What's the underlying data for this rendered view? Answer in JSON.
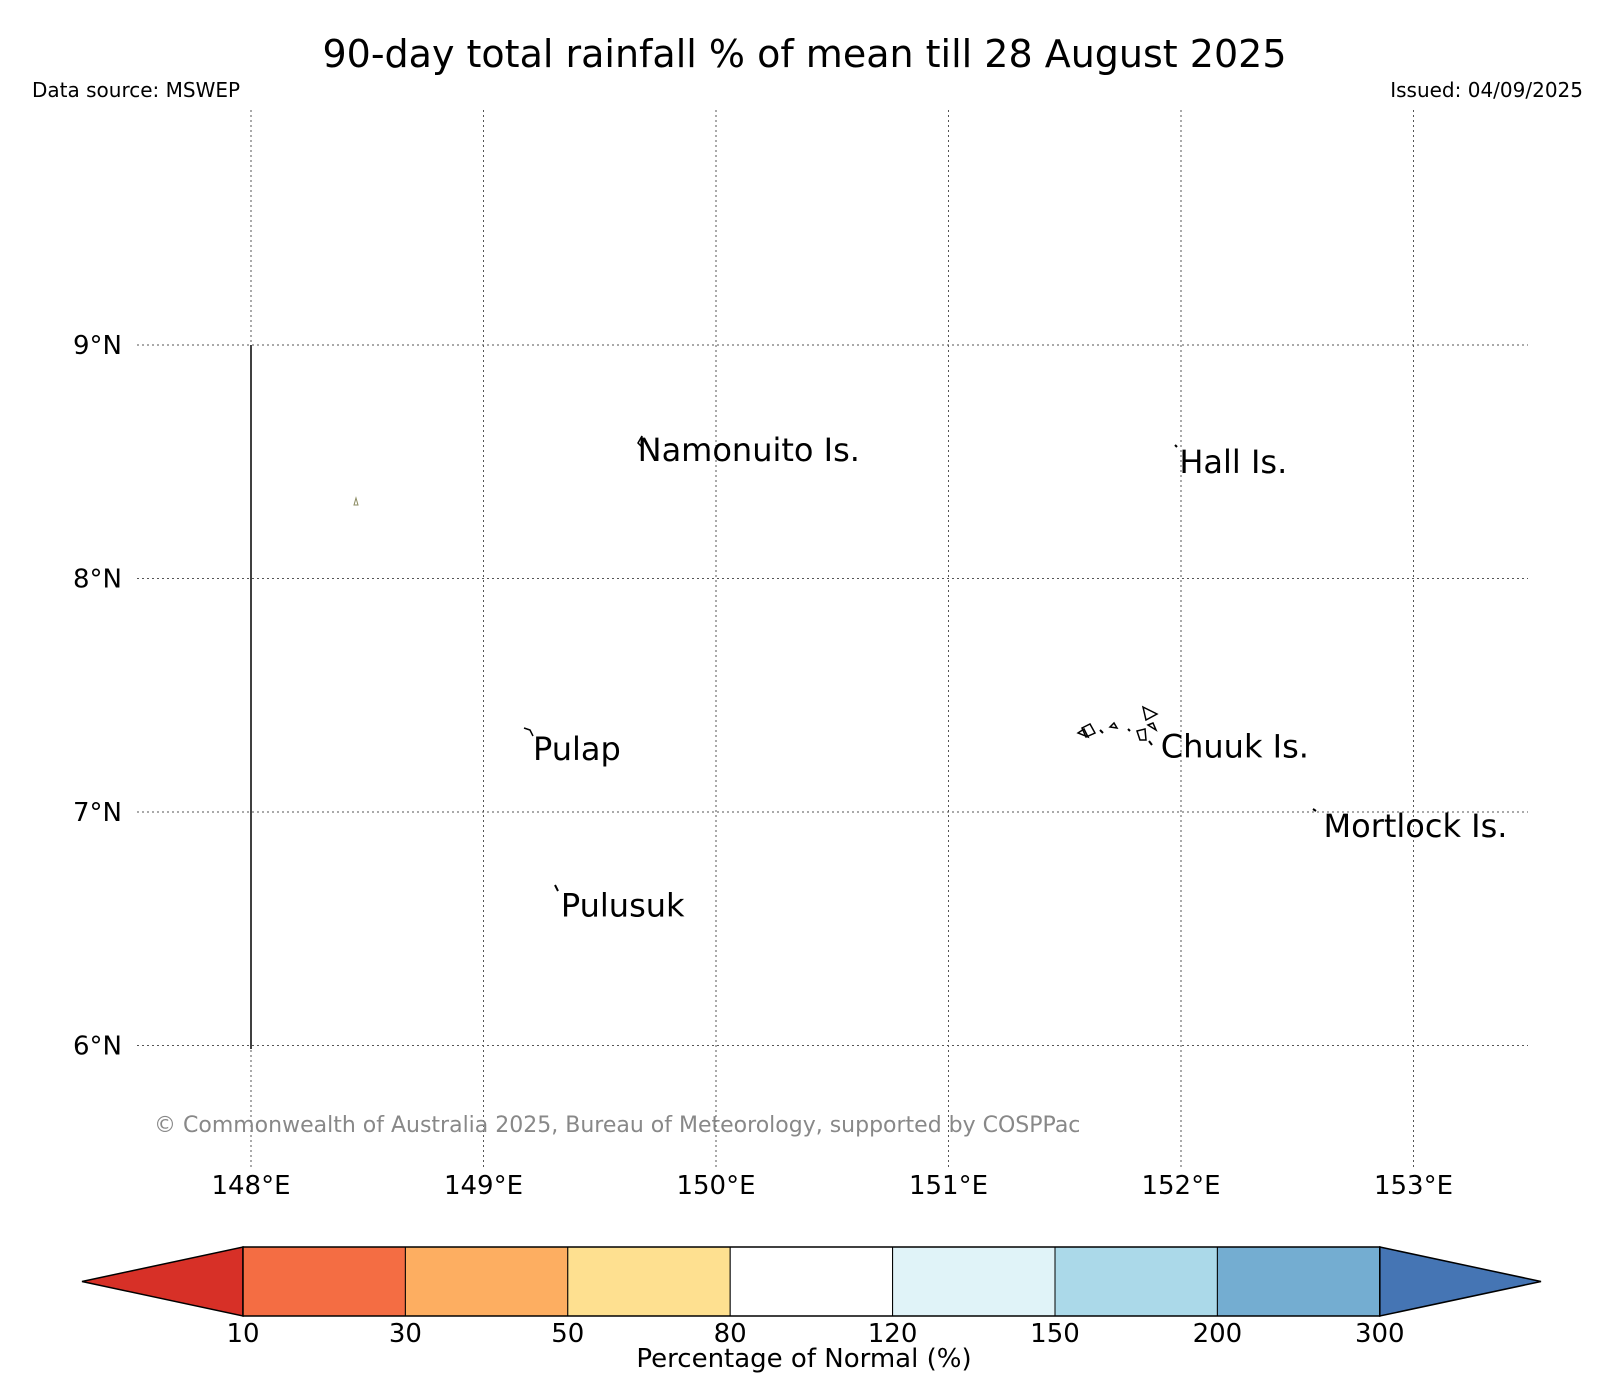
{
  "title": "90-day total rainfall % of mean till 28 August 2025",
  "data_source": "Data source: MSWEP",
  "issued": "Issued: 04/09/2025",
  "map": {
    "lon_range": [
      147.5,
      153.5
    ],
    "lat_range": [
      5.5,
      10.0
    ],
    "lat_ticks": [
      {
        "value": 9,
        "label": "9°N"
      },
      {
        "value": 8,
        "label": "8°N"
      },
      {
        "value": 7,
        "label": "7°N"
      },
      {
        "value": 6,
        "label": "6°N"
      }
    ],
    "lon_ticks": [
      {
        "value": 148,
        "label": "148°E"
      },
      {
        "value": 149,
        "label": "149°E"
      },
      {
        "value": 150,
        "label": "150°E"
      },
      {
        "value": 151,
        "label": "151°E"
      },
      {
        "value": 152,
        "label": "152°E"
      },
      {
        "value": 153,
        "label": "153°E"
      }
    ],
    "places": [
      {
        "name": "Namonuito Is.",
        "lon": 149.65,
        "lat": 8.55
      },
      {
        "name": "Hall Is.",
        "lon": 151.98,
        "lat": 8.5
      },
      {
        "name": "Pulap",
        "lon": 149.2,
        "lat": 7.27
      },
      {
        "name": "Chuuk Is.",
        "lon": 151.9,
        "lat": 7.28
      },
      {
        "name": "Mortlock Is.",
        "lon": 152.6,
        "lat": 6.94
      },
      {
        "name": "Pulusuk",
        "lon": 149.32,
        "lat": 6.6
      }
    ],
    "copyright": "© Commonwealth of Australia 2025, Bureau of Meteorology, supported by COSPPac"
  },
  "colorbar": {
    "title": "Percentage of Normal (%)",
    "ticks": [
      "10",
      "30",
      "50",
      "80",
      "120",
      "150",
      "200",
      "300"
    ],
    "colors": {
      "below_10": "#d73027",
      "10_30": "#f46d43",
      "30_50": "#fdae61",
      "50_80": "#fee090",
      "80_120": "#ffffff",
      "120_150": "#e0f3f8",
      "150_200": "#abd9e9",
      "200_300": "#74add1",
      "above_300": "#4575b4"
    }
  }
}
